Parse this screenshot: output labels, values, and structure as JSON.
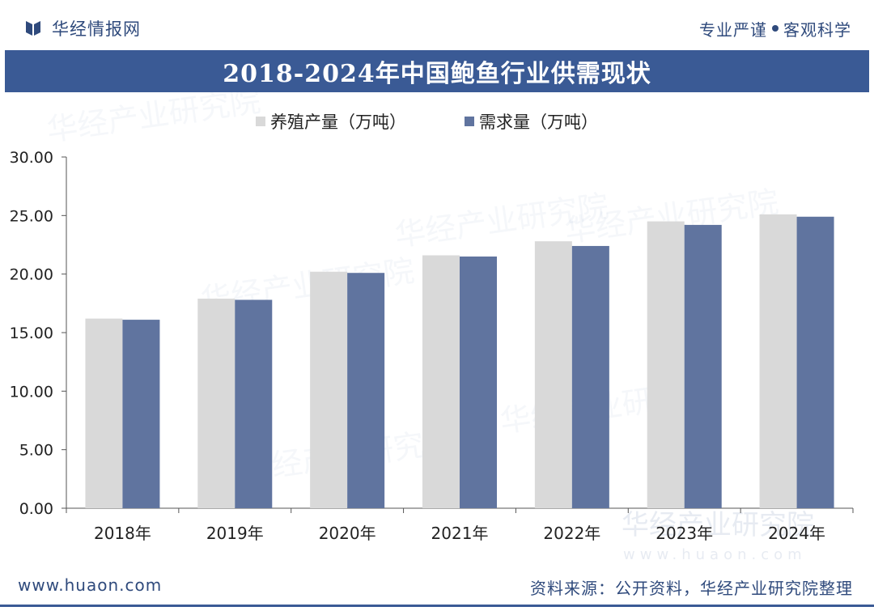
{
  "header": {
    "brand": "华经情报网",
    "slogan_left": "专业严谨",
    "slogan_right": "客观科学"
  },
  "title": "2018-2024年中国鲍鱼行业供需现状",
  "chart_data": {
    "type": "bar",
    "title": "2018-2024年中国鲍鱼行业供需现状",
    "categories": [
      "2018年",
      "2019年",
      "2020年",
      "2021年",
      "2022年",
      "2023年",
      "2024年"
    ],
    "series": [
      {
        "name": "养殖产量（万吨）",
        "color": "#d9d9d9",
        "values": [
          16.2,
          17.9,
          20.2,
          21.6,
          22.8,
          24.5,
          25.1
        ]
      },
      {
        "name": "需求量（万吨）",
        "color": "#60749f",
        "values": [
          16.1,
          17.8,
          20.1,
          21.5,
          22.4,
          24.2,
          24.9
        ]
      }
    ],
    "ylim": [
      0,
      30
    ],
    "yticks": [
      0,
      5,
      10,
      15,
      20,
      25,
      30
    ],
    "ytick_labels": [
      "0.00",
      "5.00",
      "10.00",
      "15.00",
      "20.00",
      "25.00",
      "30.00"
    ],
    "xlabel": "",
    "ylabel": "",
    "legend_position": "top-left",
    "grid": false
  },
  "watermark": {
    "name": "华经产业研究院",
    "url": "www.huaon.com"
  },
  "footer": {
    "url": "www.huaon.com",
    "source": "资料来源：公开资料，华经产业研究院整理"
  },
  "colors": {
    "brand": "#2f4a7c",
    "title_bar": "#3a5a95"
  }
}
